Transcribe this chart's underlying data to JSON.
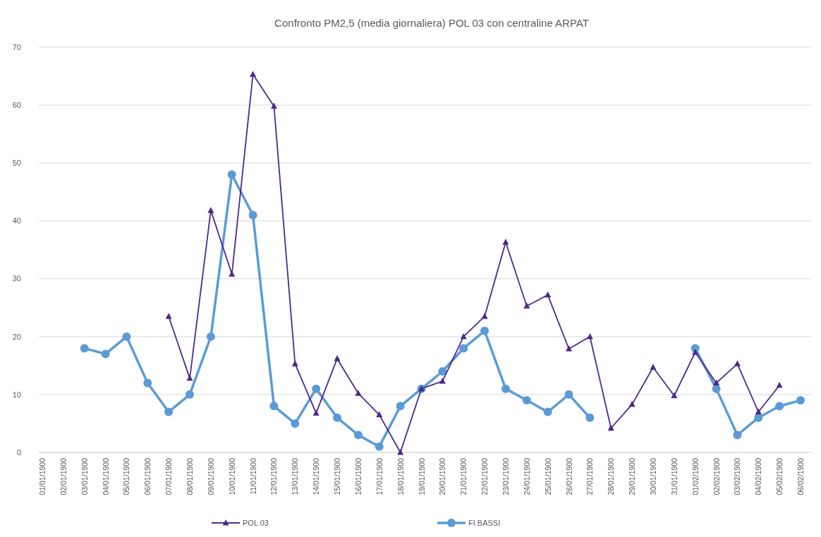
{
  "chart_data": {
    "type": "line",
    "title": "Confronto PM2,5 (media giornaliera) POL 03 con centraline ARPAT",
    "categories": [
      "01/01/1900",
      "02/01/1900",
      "03/01/1900",
      "04/01/1900",
      "05/01/1900",
      "06/01/1900",
      "07/01/1900",
      "08/01/1900",
      "09/01/1900",
      "10/01/1900",
      "11/01/1900",
      "12/01/1900",
      "13/01/1900",
      "14/01/1900",
      "15/01/1900",
      "16/01/1900",
      "17/01/1900",
      "18/01/1900",
      "19/01/1900",
      "20/01/1900",
      "21/01/1900",
      "22/01/1900",
      "23/01/1900",
      "24/01/1900",
      "25/01/1900",
      "26/01/1900",
      "27/01/1900",
      "28/01/1900",
      "29/01/1900",
      "30/01/1900",
      "31/01/1900",
      "01/02/1900",
      "02/02/1900",
      "03/02/1900",
      "04/02/1900",
      "05/02/1900",
      "06/02/1900"
    ],
    "series": [
      {
        "name": "POL 03",
        "color": "#4b2a8a",
        "marker": "triangle",
        "values": [
          null,
          null,
          null,
          null,
          null,
          null,
          23.5,
          12.8,
          41.8,
          30.8,
          65.3,
          59.8,
          15.3,
          6.8,
          16.2,
          10.2,
          6.5,
          0,
          11,
          12.3,
          20,
          23.5,
          36.3,
          25.3,
          27.2,
          17.9,
          20,
          4.2,
          8.3,
          14.7,
          9.8,
          17.3,
          12,
          15.3,
          7,
          11.6,
          null
        ]
      },
      {
        "name": "FI BASSI",
        "color": "#5b9bd5",
        "marker": "circle",
        "values": [
          null,
          null,
          18,
          17,
          20,
          12,
          7,
          10,
          20,
          48,
          41,
          8,
          5,
          11,
          6,
          3,
          1,
          8,
          11,
          14,
          18,
          21,
          11,
          9,
          7,
          10,
          6,
          null,
          null,
          null,
          null,
          18,
          11,
          3,
          6,
          8,
          9
        ]
      }
    ],
    "ylim": [
      0,
      70
    ],
    "yticks": [
      0,
      10,
      20,
      30,
      40,
      50,
      60,
      70
    ],
    "grid": "y",
    "legend": "bottom"
  }
}
